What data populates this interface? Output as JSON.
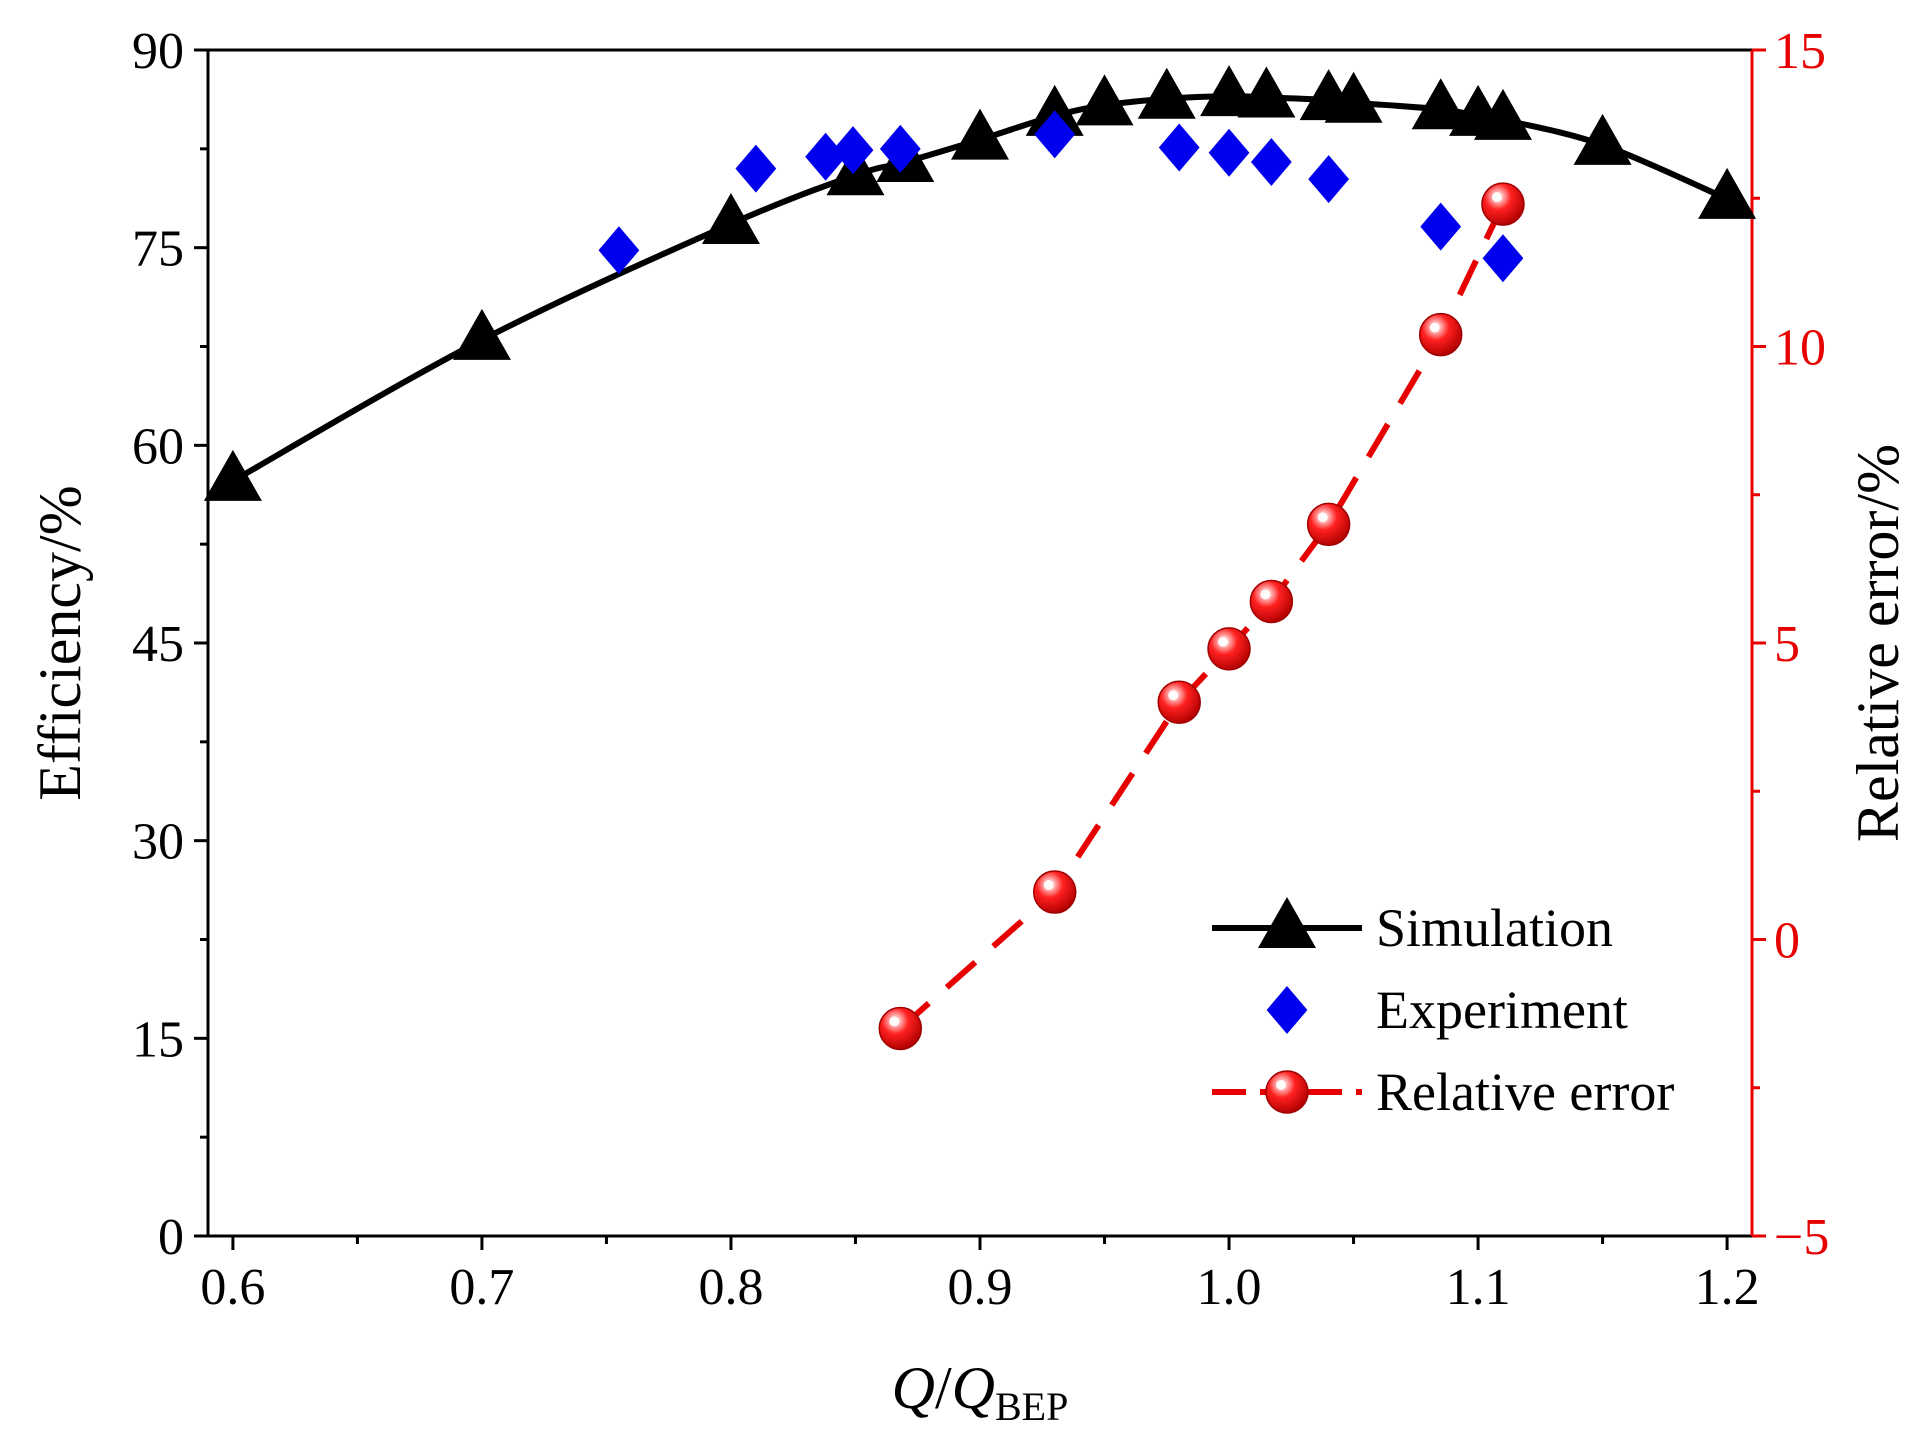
{
  "chart_data": {
    "type": "line",
    "xlabel": {
      "italic": "Q",
      "sep": "/",
      "italic2": "Q",
      "sub": "BEP"
    },
    "ylabel": "Efficiency/%",
    "y2label": "Relative error/%",
    "xlim": [
      0.59,
      1.21
    ],
    "ylim": [
      0,
      90
    ],
    "y2lim": [
      -5,
      15
    ],
    "xticks": [
      "0.6",
      "0.7",
      "0.8",
      "0.9",
      "1.0",
      "1.1",
      "1.2"
    ],
    "xtick_values": [
      0.6,
      0.7,
      0.8,
      0.9,
      1.0,
      1.1,
      1.2
    ],
    "yticks": [
      "0",
      "15",
      "30",
      "45",
      "60",
      "75",
      "90"
    ],
    "ytick_values": [
      0,
      15,
      30,
      45,
      60,
      75,
      90
    ],
    "y2ticks": [
      "−5",
      "0",
      "5",
      "10",
      "15"
    ],
    "y2tick_values": [
      -5,
      0,
      5,
      10,
      15
    ],
    "colors": {
      "simulation": "#000000",
      "experiment": "#0000ee",
      "error": "#e60000"
    },
    "series": [
      {
        "name": "Simulation",
        "axis": "left",
        "x": [
          0.6,
          0.7,
          0.8,
          0.85,
          0.87,
          0.9,
          0.93,
          0.95,
          0.975,
          1.0,
          1.015,
          1.04,
          1.05,
          1.085,
          1.1,
          1.11,
          1.15,
          1.2
        ],
        "y": [
          57.3,
          68.0,
          76.8,
          80.5,
          81.5,
          83.2,
          85.0,
          85.8,
          86.3,
          86.5,
          86.4,
          86.2,
          86.0,
          85.5,
          85.0,
          84.7,
          82.8,
          78.7
        ]
      },
      {
        "name": "Experiment",
        "axis": "left",
        "x": [
          0.755,
          0.81,
          0.838,
          0.849,
          0.868,
          0.93,
          0.98,
          1.0,
          1.017,
          1.04,
          1.085,
          1.11
        ],
        "y": [
          74.8,
          81.0,
          81.9,
          82.4,
          82.5,
          83.6,
          82.6,
          82.2,
          81.5,
          80.2,
          76.6,
          74.2
        ]
      },
      {
        "name": "Relative error",
        "axis": "right",
        "x": [
          0.868,
          0.93,
          0.98,
          1.0,
          1.017,
          1.04,
          1.085,
          1.11
        ],
        "y": [
          -1.5,
          0.8,
          4.0,
          4.9,
          5.7,
          7.0,
          10.2,
          12.4
        ]
      }
    ]
  }
}
